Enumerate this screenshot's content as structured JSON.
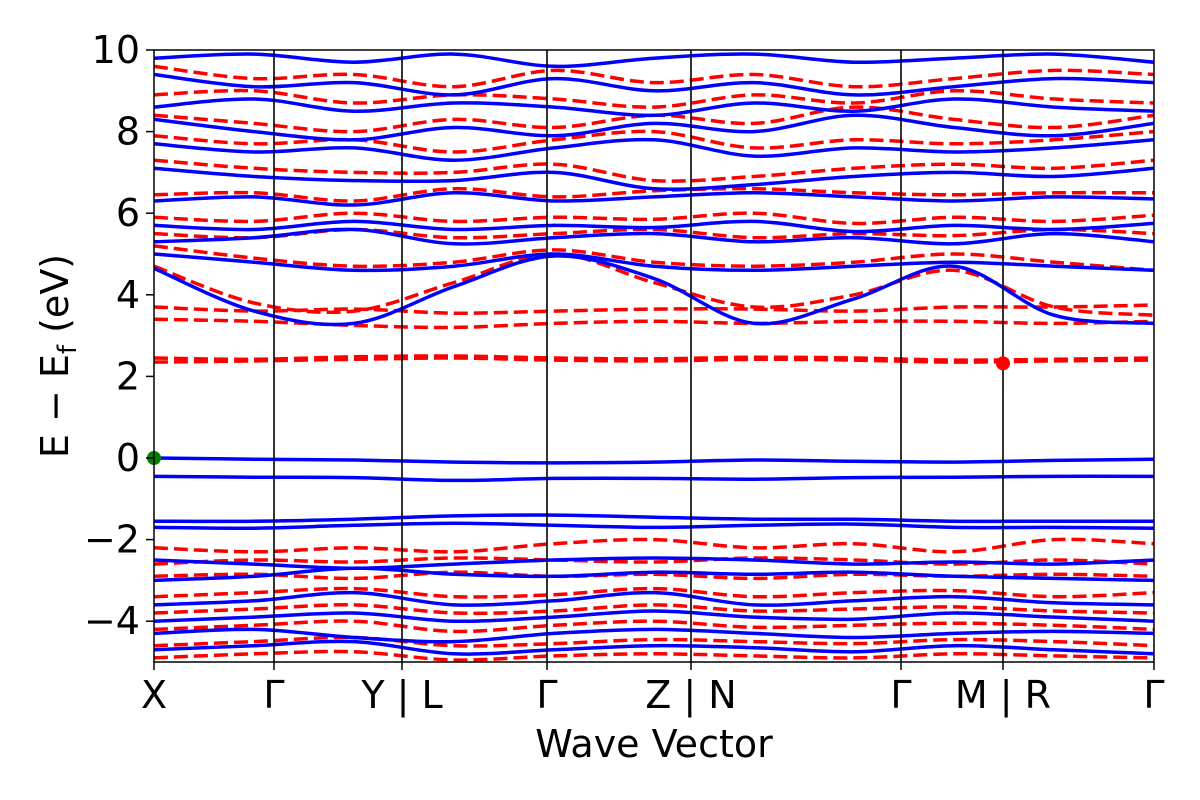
{
  "chart_data": {
    "type": "line",
    "title": "",
    "xlabel": "Wave Vector",
    "ylabel": "E − E",
    "ylabel_subscript": "f",
    "ylabel_unit": " (eV)",
    "ylim": [
      -5,
      10
    ],
    "yticks": [
      {
        "value": 10,
        "label": "10"
      },
      {
        "value": 8,
        "label": "8"
      },
      {
        "value": 6,
        "label": "6"
      },
      {
        "value": 4,
        "label": "4"
      },
      {
        "value": 2,
        "label": "2"
      },
      {
        "value": 0,
        "label": "0"
      },
      {
        "value": -2,
        "label": "−2"
      },
      {
        "value": -4,
        "label": "−4"
      }
    ],
    "xlim": [
      0,
      1
    ],
    "kpoint_labels": [
      {
        "x": 0.0,
        "label": "X"
      },
      {
        "x": 0.12,
        "label": "Γ"
      },
      {
        "x": 0.248,
        "label": "Y | L"
      },
      {
        "x": 0.393,
        "label": "Γ"
      },
      {
        "x": 0.537,
        "label": "Z | N"
      },
      {
        "x": 0.747,
        "label": "Γ"
      },
      {
        "x": 0.849,
        "label": "M | R"
      },
      {
        "x": 1.0,
        "label": "Γ"
      }
    ],
    "special_points": [
      {
        "name": "VBM",
        "x": 0.0,
        "y": 0.0,
        "color": "#008000"
      },
      {
        "name": "CBM",
        "x": 0.849,
        "y": 2.32,
        "color": "#ff0000"
      }
    ],
    "series_styles": [
      {
        "color": "#0000ff",
        "dash": "solid"
      },
      {
        "color": "#ff0000",
        "dash": "dashed"
      }
    ],
    "bands": {
      "spin_up": [
        [
          0.0,
          -0.03,
          -0.05,
          -0.1,
          -0.12,
          -0.1,
          -0.05,
          -0.08,
          -0.1,
          -0.06,
          -0.03
        ],
        [
          -0.45,
          -0.47,
          -0.48,
          -0.55,
          -0.5,
          -0.5,
          -0.52,
          -0.48,
          -0.47,
          -0.45,
          -0.45
        ],
        [
          -1.55,
          -1.55,
          -1.5,
          -1.42,
          -1.4,
          -1.45,
          -1.5,
          -1.5,
          -1.55,
          -1.55,
          -1.55
        ],
        [
          -1.7,
          -1.72,
          -1.65,
          -1.6,
          -1.65,
          -1.7,
          -1.65,
          -1.62,
          -1.7,
          -1.7,
          -1.72
        ],
        [
          -2.5,
          -2.6,
          -2.7,
          -2.6,
          -2.5,
          -2.45,
          -2.5,
          -2.6,
          -2.55,
          -2.6,
          -2.5
        ],
        [
          -3.0,
          -2.9,
          -2.7,
          -2.85,
          -2.9,
          -2.8,
          -2.85,
          -2.8,
          -2.9,
          -2.95,
          -3.0
        ],
        [
          -3.6,
          -3.5,
          -3.3,
          -3.6,
          -3.5,
          -3.3,
          -3.6,
          -3.5,
          -3.4,
          -3.55,
          -3.6
        ],
        [
          -4.0,
          -3.9,
          -3.8,
          -4.0,
          -3.9,
          -3.75,
          -3.9,
          -3.95,
          -3.8,
          -3.9,
          -4.0
        ],
        [
          -4.3,
          -4.2,
          -4.4,
          -4.5,
          -4.3,
          -4.2,
          -4.3,
          -4.4,
          -4.3,
          -4.25,
          -4.3
        ],
        [
          -4.7,
          -4.6,
          -4.5,
          -4.8,
          -4.7,
          -4.6,
          -4.65,
          -4.75,
          -4.6,
          -4.7,
          -4.8
        ],
        [
          4.65,
          3.6,
          3.3,
          4.2,
          4.95,
          4.4,
          3.3,
          3.9,
          4.7,
          3.5,
          3.3
        ],
        [
          5.0,
          4.8,
          4.6,
          4.7,
          5.0,
          4.7,
          4.6,
          4.7,
          4.8,
          4.7,
          4.6
        ],
        [
          5.3,
          5.4,
          5.6,
          5.25,
          5.4,
          5.5,
          5.3,
          5.4,
          5.25,
          5.5,
          5.3
        ],
        [
          5.7,
          5.6,
          5.8,
          5.6,
          5.7,
          5.65,
          5.8,
          5.55,
          5.7,
          5.6,
          5.75
        ],
        [
          6.3,
          6.4,
          6.2,
          6.5,
          6.3,
          6.4,
          6.5,
          6.4,
          6.3,
          6.4,
          6.35
        ],
        [
          7.1,
          6.9,
          6.8,
          6.8,
          7.0,
          6.6,
          6.7,
          6.9,
          7.0,
          6.9,
          7.1
        ],
        [
          7.7,
          7.5,
          7.6,
          7.3,
          7.6,
          7.8,
          7.4,
          7.6,
          7.5,
          7.6,
          7.8
        ],
        [
          8.3,
          8.0,
          7.8,
          8.1,
          7.9,
          8.2,
          8.0,
          8.4,
          8.1,
          7.9,
          8.2
        ],
        [
          8.6,
          8.8,
          8.5,
          8.7,
          8.6,
          8.4,
          8.7,
          8.5,
          8.8,
          8.6,
          8.5
        ],
        [
          9.4,
          9.1,
          9.2,
          8.9,
          9.3,
          9.0,
          9.2,
          8.9,
          9.1,
          9.3,
          9.2
        ],
        [
          9.8,
          9.9,
          9.7,
          9.9,
          9.6,
          9.8,
          9.9,
          9.7,
          9.8,
          9.9,
          9.7
        ]
      ],
      "spin_down": [
        [
          2.35,
          2.38,
          2.42,
          2.45,
          2.4,
          2.38,
          2.42,
          2.4,
          2.35,
          2.38,
          2.4
        ],
        [
          2.45,
          2.42,
          2.48,
          2.5,
          2.45,
          2.43,
          2.47,
          2.45,
          2.4,
          2.42,
          2.45
        ],
        [
          3.4,
          3.35,
          3.25,
          3.2,
          3.3,
          3.35,
          3.3,
          3.35,
          3.35,
          3.3,
          3.35
        ],
        [
          3.7,
          3.6,
          3.65,
          3.55,
          3.6,
          3.65,
          3.65,
          3.6,
          3.7,
          3.7,
          3.75
        ],
        [
          4.7,
          3.8,
          3.6,
          4.3,
          5.0,
          4.3,
          3.7,
          4.0,
          4.6,
          3.7,
          3.5
        ],
        [
          5.2,
          4.9,
          4.7,
          4.8,
          5.1,
          4.8,
          4.7,
          4.8,
          5.0,
          4.8,
          4.6
        ],
        [
          5.5,
          5.4,
          5.6,
          5.4,
          5.5,
          5.6,
          5.4,
          5.5,
          5.45,
          5.6,
          5.5
        ],
        [
          5.9,
          5.8,
          6.0,
          5.8,
          5.9,
          5.85,
          6.0,
          5.75,
          5.9,
          5.8,
          5.95
        ],
        [
          6.45,
          6.5,
          6.3,
          6.6,
          6.4,
          6.55,
          6.6,
          6.5,
          6.45,
          6.5,
          6.5
        ],
        [
          7.3,
          7.1,
          7.0,
          7.0,
          7.2,
          6.8,
          6.9,
          7.1,
          7.2,
          7.1,
          7.3
        ],
        [
          7.9,
          7.7,
          7.8,
          7.5,
          7.8,
          8.0,
          7.6,
          7.8,
          7.7,
          7.8,
          8.0
        ],
        [
          8.4,
          8.2,
          8.0,
          8.3,
          8.1,
          8.4,
          8.2,
          8.6,
          8.3,
          8.1,
          8.4
        ],
        [
          8.9,
          9.0,
          8.7,
          8.9,
          8.8,
          8.6,
          8.9,
          8.7,
          9.0,
          8.8,
          8.7
        ],
        [
          9.6,
          9.3,
          9.4,
          9.1,
          9.5,
          9.2,
          9.4,
          9.1,
          9.3,
          9.5,
          9.4
        ],
        [
          -2.2,
          -2.3,
          -2.2,
          -2.3,
          -2.1,
          -2.0,
          -2.2,
          -2.1,
          -2.3,
          -2.0,
          -2.1
        ],
        [
          -2.6,
          -2.5,
          -2.55,
          -2.45,
          -2.5,
          -2.55,
          -2.45,
          -2.5,
          -2.6,
          -2.5,
          -2.6
        ],
        [
          -2.9,
          -2.85,
          -2.95,
          -2.8,
          -2.9,
          -2.85,
          -2.95,
          -2.85,
          -2.9,
          -2.85,
          -2.9
        ],
        [
          -3.4,
          -3.3,
          -3.2,
          -3.4,
          -3.35,
          -3.2,
          -3.4,
          -3.3,
          -3.25,
          -3.4,
          -3.3
        ],
        [
          -3.8,
          -3.7,
          -3.6,
          -3.8,
          -3.75,
          -3.6,
          -3.75,
          -3.7,
          -3.65,
          -3.75,
          -3.8
        ],
        [
          -4.2,
          -4.1,
          -4.0,
          -4.25,
          -4.1,
          -4.0,
          -4.15,
          -4.1,
          -4.05,
          -4.1,
          -4.2
        ],
        [
          -4.6,
          -4.5,
          -4.4,
          -4.6,
          -4.55,
          -4.45,
          -4.5,
          -4.55,
          -4.45,
          -4.5,
          -4.6
        ],
        [
          -4.9,
          -4.8,
          -4.75,
          -4.95,
          -4.85,
          -4.8,
          -4.85,
          -4.9,
          -4.8,
          -4.85,
          -4.9
        ]
      ]
    }
  }
}
